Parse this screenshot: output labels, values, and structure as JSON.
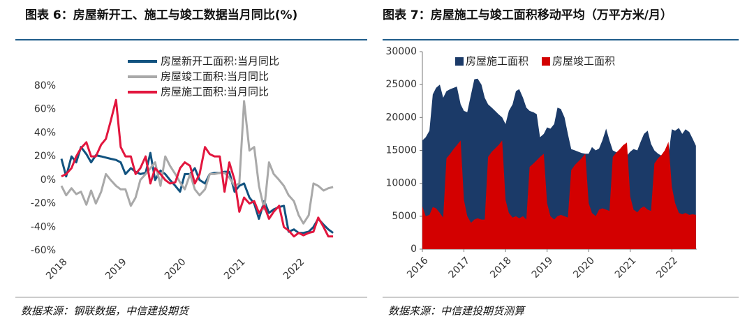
{
  "chart_data": [
    {
      "type": "line",
      "title": "图表 6：房屋新开工、施工与竣工数据当月同比(%)",
      "source": "数据来源：钢联数据，中信建投期货",
      "x": [
        2018,
        2018.08,
        2018.17,
        2018.25,
        2018.33,
        2018.42,
        2018.5,
        2018.58,
        2018.67,
        2018.75,
        2018.83,
        2018.92,
        2019,
        2019.08,
        2019.17,
        2019.25,
        2019.33,
        2019.42,
        2019.5,
        2019.58,
        2019.67,
        2019.75,
        2019.83,
        2019.92,
        2020,
        2020.08,
        2020.17,
        2020.25,
        2020.33,
        2020.42,
        2020.5,
        2020.58,
        2020.67,
        2020.75,
        2020.83,
        2020.92,
        2021,
        2021.08,
        2021.17,
        2021.25,
        2021.33,
        2021.42,
        2021.5,
        2021.58,
        2021.67,
        2021.75,
        2021.83,
        2021.92,
        2022,
        2022.08,
        2022.17,
        2022.25,
        2022.33,
        2022.42,
        2022.5,
        2022.58
      ],
      "series": [
        {
          "name": "房屋新开工面积:当月同比",
          "color": "#11527f",
          "values": [
            18,
            3,
            20,
            15,
            28,
            22,
            15,
            21,
            20,
            19,
            18,
            17,
            15,
            5,
            10,
            7,
            5,
            6,
            23,
            0,
            8,
            5,
            0,
            -5,
            -10,
            5,
            5,
            10,
            0,
            -3,
            5,
            6,
            6,
            7,
            7,
            -10,
            -5,
            -3,
            -15,
            -20,
            -33,
            -18,
            -28,
            -25,
            -23,
            -22,
            -44,
            -42,
            -45,
            -45,
            -44,
            -40,
            -33,
            -38,
            -42,
            -45
          ]
        },
        {
          "name": "房屋竣工面积:当月同比",
          "color": "#a9a9a9",
          "values": [
            -5,
            -13,
            -7,
            -12,
            -10,
            -21,
            -9,
            -20,
            -10,
            5,
            0,
            -5,
            -8,
            -8,
            -22,
            -15,
            0,
            5,
            10,
            15,
            -5,
            20,
            12,
            5,
            -2,
            -8,
            5,
            -8,
            -13,
            -8,
            5,
            5,
            6,
            6,
            2,
            -5,
            -3,
            67,
            25,
            28,
            -5,
            -25,
            15,
            5,
            0,
            -5,
            -13,
            -18,
            -30,
            -37,
            -30,
            -3,
            -5,
            -9,
            -7,
            -6
          ]
        },
        {
          "name": "房屋施工面积:当月同比",
          "color": "#e2163e",
          "values": [
            3,
            5,
            10,
            20,
            27,
            32,
            20,
            20,
            30,
            35,
            50,
            68,
            28,
            20,
            20,
            5,
            10,
            20,
            -3,
            10,
            5,
            0,
            -3,
            -2,
            10,
            15,
            12,
            -3,
            5,
            28,
            22,
            20,
            20,
            -10,
            15,
            0,
            -27,
            -15,
            -20,
            -18,
            -28,
            -22,
            -33,
            -27,
            -22,
            -40,
            -43,
            -48,
            -45,
            -47,
            -45,
            -44,
            -32,
            -40,
            -48,
            -48
          ]
        }
      ],
      "xlim": [
        2018,
        2022.85
      ],
      "xticks": [
        2018,
        2019,
        2020,
        2021,
        2022
      ],
      "ylim": [
        -60,
        80
      ],
      "yticks": [
        {
          "value": 80,
          "label": "80%"
        },
        {
          "value": 60,
          "label": "60%"
        },
        {
          "value": 40,
          "label": "40%"
        },
        {
          "value": 20,
          "label": "20%"
        },
        {
          "value": 0,
          "label": "0%"
        },
        {
          "value": -20,
          "label": "-20%"
        },
        {
          "value": -40,
          "label": "-40%"
        },
        {
          "value": -60,
          "label": "-60%"
        }
      ],
      "legend": "top"
    },
    {
      "type": "area",
      "title": "图表 7：房屋施工与竣工面积移动平均（万平方米/月）",
      "source": "数据来源：中信建投期货测算",
      "x": [
        2016,
        2016.08,
        2016.17,
        2016.25,
        2016.33,
        2016.42,
        2016.5,
        2016.58,
        2016.67,
        2016.75,
        2016.83,
        2016.92,
        2017,
        2017.08,
        2017.17,
        2017.25,
        2017.33,
        2017.42,
        2017.5,
        2017.58,
        2017.67,
        2017.75,
        2017.83,
        2017.92,
        2018,
        2018.08,
        2018.17,
        2018.25,
        2018.33,
        2018.42,
        2018.5,
        2018.58,
        2018.67,
        2018.75,
        2018.83,
        2018.92,
        2019,
        2019.08,
        2019.17,
        2019.25,
        2019.33,
        2019.42,
        2019.5,
        2019.58,
        2019.67,
        2019.75,
        2019.83,
        2019.92,
        2020,
        2020.08,
        2020.17,
        2020.25,
        2020.33,
        2020.42,
        2020.5,
        2020.58,
        2020.67,
        2020.75,
        2020.83,
        2020.92,
        2021,
        2021.08,
        2021.17,
        2021.25,
        2021.33,
        2021.42,
        2021.5,
        2021.58,
        2021.67,
        2021.75,
        2021.83,
        2021.92,
        2022,
        2022.08,
        2022.17,
        2022.25,
        2022.33,
        2022.42,
        2022.5,
        2022.58
      ],
      "series": [
        {
          "name": "房屋施工面积",
          "color": "#1b3a68",
          "values": [
            16500,
            17000,
            18000,
            23500,
            24500,
            25000,
            23000,
            24000,
            24300,
            24500,
            24700,
            22000,
            21000,
            20800,
            23500,
            25800,
            25900,
            25000,
            23000,
            22000,
            21500,
            21000,
            20500,
            20000,
            19000,
            21000,
            22000,
            24000,
            24300,
            23000,
            21500,
            21000,
            20800,
            20500,
            17000,
            17500,
            18500,
            18300,
            19000,
            21500,
            21300,
            20000,
            17500,
            15200,
            15000,
            14800,
            14600,
            14500,
            14500,
            15500,
            15000,
            15300,
            16500,
            18300,
            16500,
            15000,
            14700,
            14500,
            14000,
            14200,
            14800,
            15200,
            15000,
            16300,
            17500,
            18000,
            16000,
            15000,
            14500,
            14200,
            14000,
            14300,
            18200,
            18000,
            18400,
            17500,
            18200,
            17800,
            16800,
            15700
          ]
        },
        {
          "name": "房屋竣工面积",
          "color": "#d30000",
          "values": [
            6500,
            5000,
            5200,
            6400,
            6200,
            5500,
            4800,
            13800,
            14500,
            15200,
            15800,
            16500,
            7500,
            5000,
            4000,
            4500,
            4700,
            4500,
            4500,
            14000,
            14800,
            15300,
            15800,
            16500,
            7500,
            5500,
            4800,
            5000,
            4700,
            5000,
            4500,
            12500,
            13000,
            13500,
            14000,
            14500,
            7000,
            5000,
            4500,
            5000,
            5200,
            5000,
            4800,
            12000,
            12800,
            13300,
            13800,
            14500,
            7000,
            5500,
            5000,
            6000,
            6200,
            6000,
            5800,
            14000,
            14700,
            15200,
            15800,
            16200,
            8000,
            6000,
            5600,
            6200,
            6500,
            6000,
            5800,
            13000,
            13800,
            14300,
            15000,
            16300,
            9500,
            7000,
            5500,
            5300,
            5500,
            5200,
            5300,
            5200
          ]
        }
      ],
      "xlim": [
        2016,
        2022.6
      ],
      "xticks": [
        2016,
        2017,
        2018,
        2019,
        2020,
        2021,
        2022
      ],
      "ylim": [
        0,
        30000
      ],
      "yticks": [
        0,
        5000,
        10000,
        15000,
        20000,
        25000,
        30000
      ],
      "legend": "upper left"
    }
  ]
}
